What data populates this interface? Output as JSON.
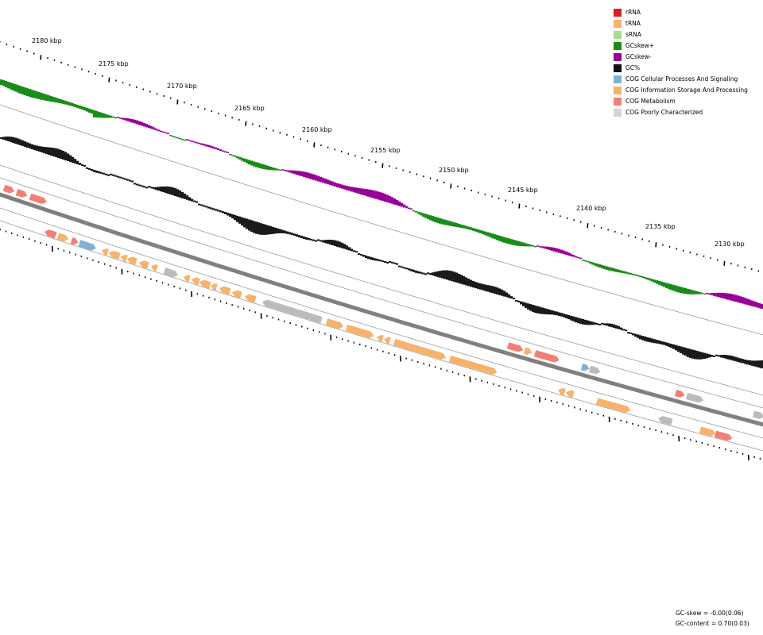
{
  "map": {
    "scale_labels": [
      "2180 kbp",
      "2175 kbp",
      "2170 kbp",
      "2165 kbp",
      "2160 kbp",
      "2155 kbp",
      "2150 kbp",
      "2145 kbp",
      "2140 kbp",
      "2135 kbp",
      "2130 kbp"
    ]
  },
  "legend": {
    "items": [
      {
        "label": "rRNA",
        "color": "#d62020"
      },
      {
        "label": "tRNA",
        "color": "#f8b26a"
      },
      {
        "label": "sRNA",
        "color": "#a8dc90"
      },
      {
        "label": "GCskew+",
        "color": "#1a8c1a"
      },
      {
        "label": "GCskew-",
        "color": "#990099"
      },
      {
        "label": "GC%",
        "color": "#111111"
      },
      {
        "label": "COG Cellular Processes And Signaling",
        "color": "#7fb0d8"
      },
      {
        "label": "COG Information Storage And Processing",
        "color": "#f8b26a"
      },
      {
        "label": "COG Metabolism",
        "color": "#f27f74"
      },
      {
        "label": "COG Poorly Characterized",
        "color": "#d4d4d4"
      }
    ]
  },
  "stats": {
    "gc_skew": "GC-skew = -0.00(0.06)",
    "gc_content": "GC-content = 0.70(0.03)"
  }
}
